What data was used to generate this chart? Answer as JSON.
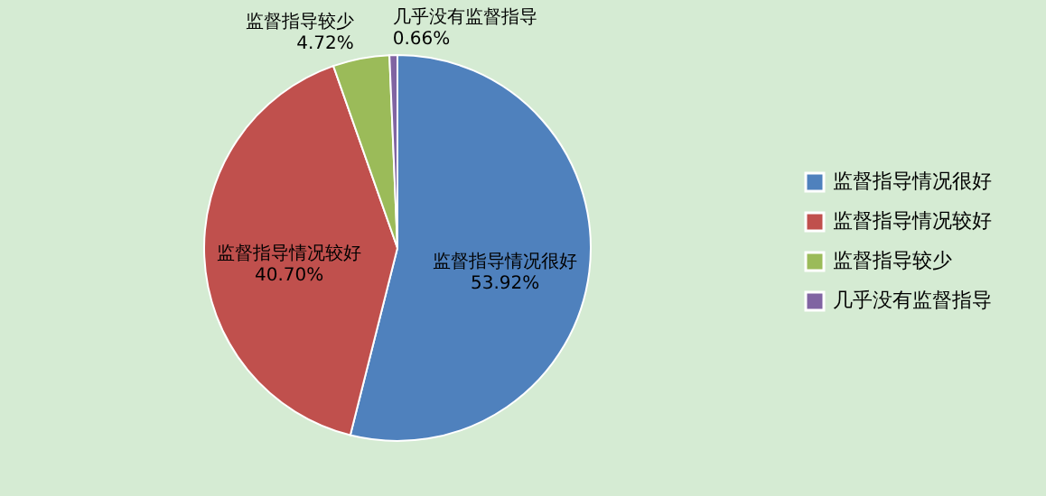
{
  "chart_data": {
    "type": "pie",
    "categories": [
      "监督指导情况很好",
      "监督指导情况较好",
      "监督指导较少",
      "几乎没有监督指导"
    ],
    "values": [
      53.92,
      40.7,
      4.72,
      0.66
    ],
    "colors": [
      "#4f81bd",
      "#c0504d",
      "#9bbb59",
      "#8064a2"
    ],
    "value_labels": [
      "53.92%",
      "40.70%",
      "4.72%",
      "0.66%"
    ],
    "legend": "right"
  }
}
